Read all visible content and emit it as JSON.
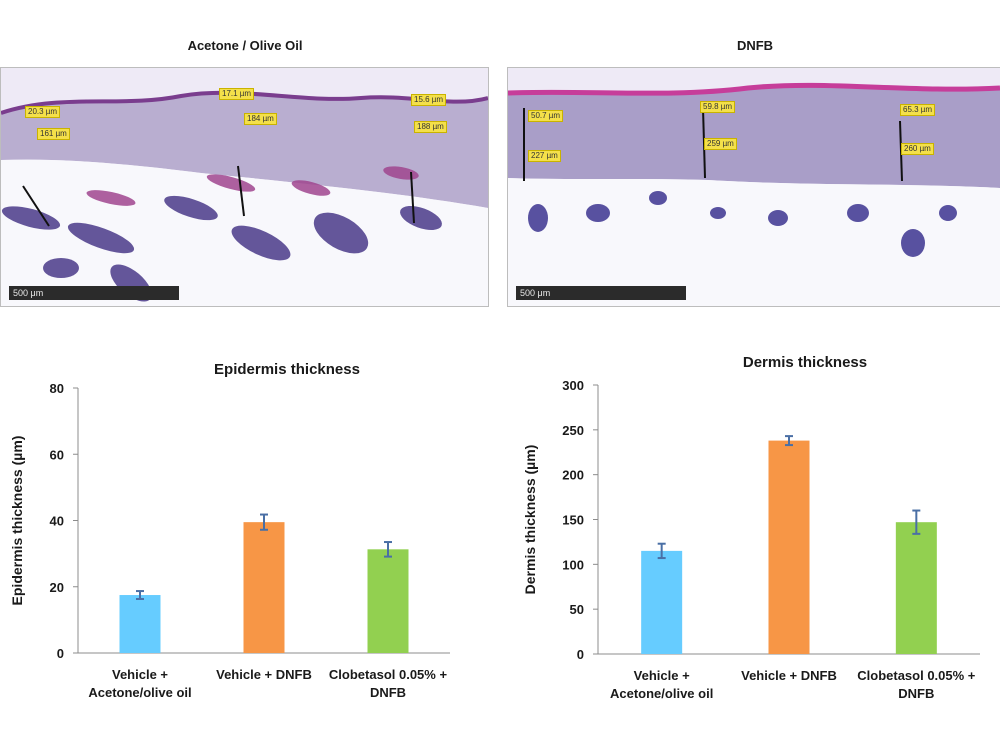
{
  "histology": {
    "left_title": "Acetone / Olive Oil",
    "right_title": "DNFB",
    "left_scale": "500 μm",
    "right_scale": "500 μm",
    "left_labels": [
      "20.3 µm",
      "161 µm",
      "17.1 µm",
      "184 µm",
      "15.6 µm",
      "188 µm"
    ],
    "right_labels": [
      "50.7 µm",
      "227 µm",
      "59.8 µm",
      "259 µm",
      "65.3 µm",
      "260 µm"
    ]
  },
  "colors": {
    "vehicle": "#66ccff",
    "dnfb": "#f79646",
    "clobetasol": "#92d050",
    "error": "#4a6fa5"
  },
  "chart_data": [
    {
      "type": "bar",
      "title": "Epidermis thickness",
      "xlabel": "",
      "ylabel": "Epidermis thickness (µm)",
      "categories": [
        [
          "Vehicle +",
          "Acetone/olive oil"
        ],
        [
          "Vehicle + DNFB"
        ],
        [
          "Clobetasol 0.05%  +",
          "DNFB"
        ]
      ],
      "values": [
        17.5,
        39.5,
        31.3
      ],
      "errors": [
        1.2,
        2.3,
        2.2
      ],
      "ylim": [
        0,
        80
      ],
      "yticks": [
        0,
        20,
        40,
        60,
        80
      ],
      "grid": false
    },
    {
      "type": "bar",
      "title": "Dermis thickness",
      "xlabel": "",
      "ylabel": "Dermis thickness (µm)",
      "categories": [
        [
          "Vehicle +",
          "Acetone/olive oil"
        ],
        [
          "Vehicle + DNFB"
        ],
        [
          "Clobetasol 0.05%  +",
          "DNFB"
        ]
      ],
      "values": [
        115,
        238,
        147
      ],
      "errors": [
        8,
        5,
        13
      ],
      "ylim": [
        0,
        300
      ],
      "yticks": [
        0,
        50,
        100,
        150,
        200,
        250,
        300
      ],
      "grid": false
    }
  ]
}
